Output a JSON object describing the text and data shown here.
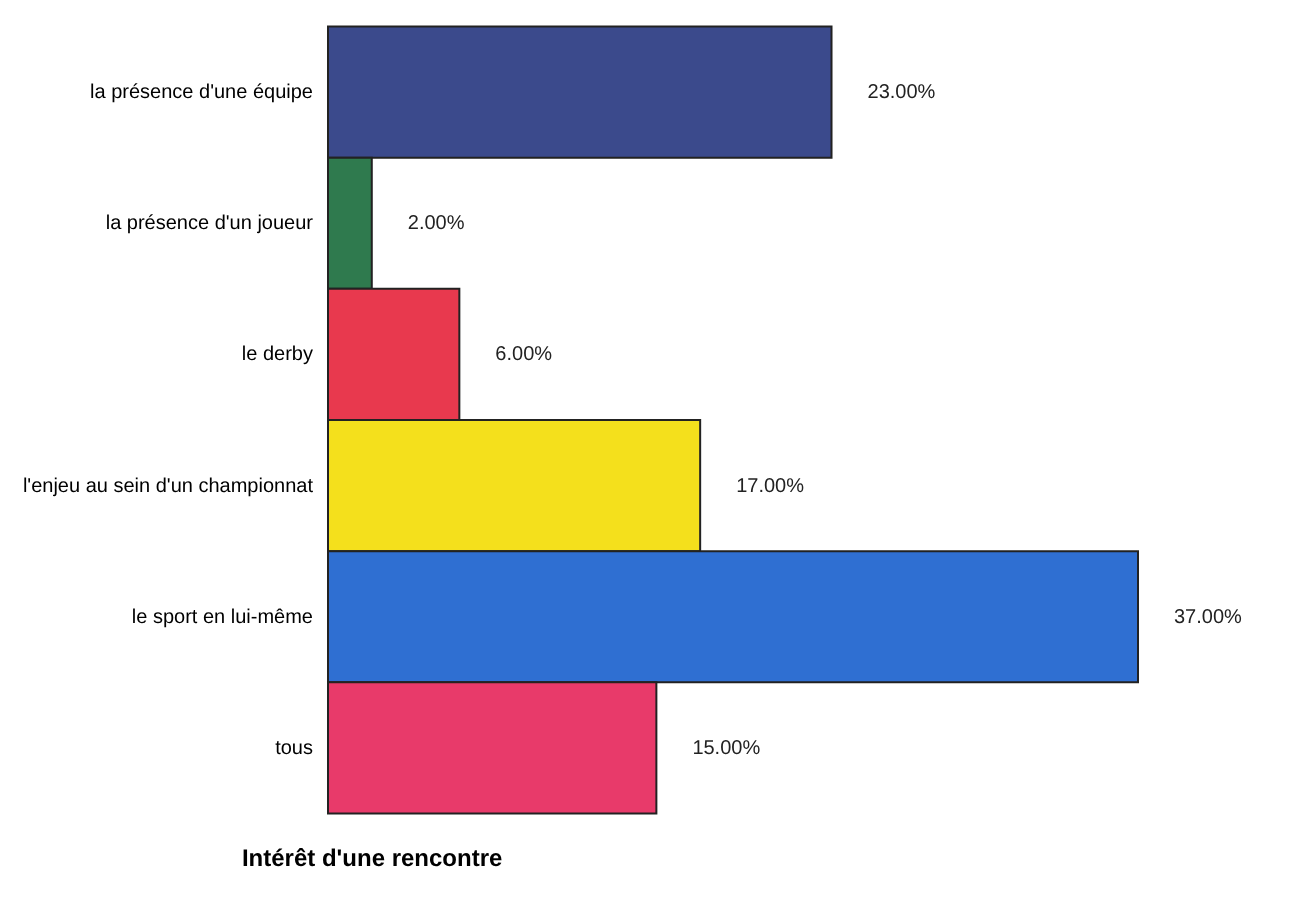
{
  "chart_data": {
    "type": "bar",
    "orientation": "horizontal",
    "title": "Intérêt d'une rencontre",
    "categories": [
      "la présence d'une équipe",
      "la présence d'un joueur",
      "le derby",
      "l'enjeu au sein d'un championnat",
      "le sport en lui-même",
      "tous"
    ],
    "values": [
      23,
      2,
      6,
      17,
      37,
      15
    ],
    "value_labels": [
      "23.00%",
      "2.00%",
      "6.00%",
      "17.00%",
      "37.00%",
      "15.00%"
    ],
    "colors": [
      "#3b4a8c",
      "#2f7a4e",
      "#e8394e",
      "#f4e01c",
      "#2f6fd2",
      "#e83a6a"
    ]
  }
}
